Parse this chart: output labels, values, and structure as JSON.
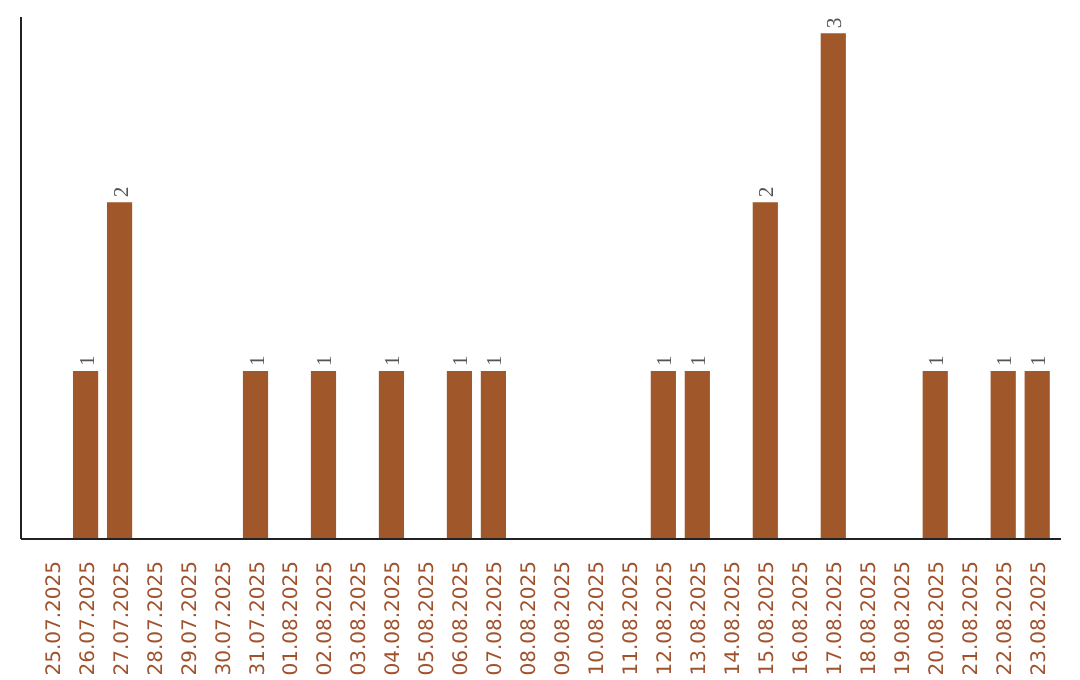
{
  "chart_data": {
    "type": "bar",
    "categories": [
      "25.07.2025",
      "26.07.2025",
      "27.07.2025",
      "28.07.2025",
      "29.07.2025",
      "30.07.2025",
      "31.07.2025",
      "01.08.2025",
      "02.08.2025",
      "03.08.2025",
      "04.08.2025",
      "05.08.2025",
      "06.08.2025",
      "07.08.2025",
      "08.08.2025",
      "09.08.2025",
      "10.08.2025",
      "11.08.2025",
      "12.08.2025",
      "13.08.2025",
      "14.08.2025",
      "15.08.2025",
      "16.08.2025",
      "17.08.2025",
      "18.08.2025",
      "19.08.2025",
      "20.08.2025",
      "21.08.2025",
      "22.08.2025",
      "23.08.2025"
    ],
    "values": [
      null,
      1,
      2,
      null,
      null,
      null,
      1,
      null,
      1,
      null,
      1,
      null,
      1,
      1,
      null,
      null,
      null,
      null,
      1,
      1,
      null,
      2,
      null,
      3,
      null,
      null,
      1,
      null,
      1,
      1
    ],
    "color": "#a0572a",
    "data_labels": true,
    "tick_labels": "x",
    "grid": false
  }
}
